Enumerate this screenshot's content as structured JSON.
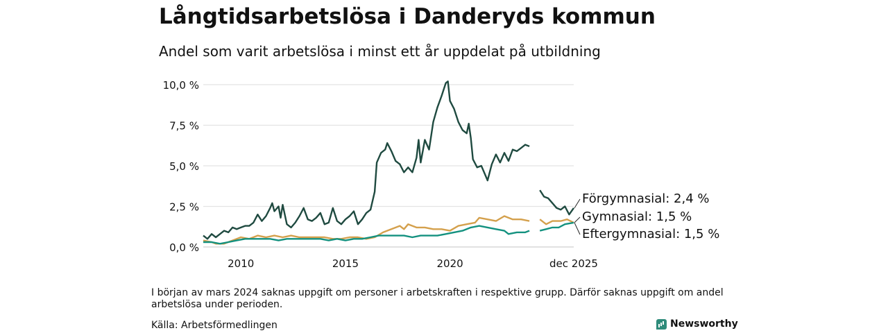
{
  "header": {
    "title": "Långtidsarbetslösa i Danderyds kommun",
    "subtitle": "Andel som varit arbetslösa i minst ett år uppdelat på utbildning"
  },
  "footer": {
    "note": "I början av mars 2024 saknas uppgift om personer i arbetskraften i respektive grupp. Därför saknas uppgift om andel arbetslösa under perioden.",
    "source": "Källa: Arbetsförmedlingen",
    "brand": "Newsworthy"
  },
  "chart_data": {
    "type": "line",
    "title": "Långtidsarbetslösa i Danderyds kommun",
    "subtitle": "Andel som varit arbetslösa i minst ett år uppdelat på utbildning",
    "xlabel": "",
    "ylabel": "",
    "x_range": [
      2008.2,
      2025.92
    ],
    "ylim": [
      0,
      10.5
    ],
    "y_ticks": [
      0,
      2.5,
      5,
      7.5,
      10
    ],
    "y_tick_labels": [
      "0,0 %",
      "2,5 %",
      "5,0 %",
      "7,5 %",
      "10,0 %"
    ],
    "x_ticks": [
      2010,
      2015,
      2020,
      2025.92
    ],
    "x_tick_labels": [
      "2010",
      "2015",
      "2020",
      "dec 2025"
    ],
    "grid": true,
    "gap": [
      2024.0,
      2024.3
    ],
    "series": [
      {
        "name": "Förgymnasial",
        "label": "Förgymnasial: 2,4 %",
        "color": "#1f4a40",
        "points": [
          [
            2008.2,
            0.7
          ],
          [
            2008.4,
            0.5
          ],
          [
            2008.6,
            0.8
          ],
          [
            2008.8,
            0.6
          ],
          [
            2009.0,
            0.8
          ],
          [
            2009.2,
            1.0
          ],
          [
            2009.4,
            0.9
          ],
          [
            2009.6,
            1.2
          ],
          [
            2009.8,
            1.1
          ],
          [
            2010.0,
            1.2
          ],
          [
            2010.2,
            1.3
          ],
          [
            2010.4,
            1.3
          ],
          [
            2010.6,
            1.5
          ],
          [
            2010.8,
            2.0
          ],
          [
            2011.0,
            1.6
          ],
          [
            2011.2,
            1.9
          ],
          [
            2011.4,
            2.4
          ],
          [
            2011.5,
            2.7
          ],
          [
            2011.6,
            2.2
          ],
          [
            2011.8,
            2.5
          ],
          [
            2011.9,
            1.8
          ],
          [
            2012.0,
            2.6
          ],
          [
            2012.2,
            1.4
          ],
          [
            2012.4,
            1.2
          ],
          [
            2012.6,
            1.5
          ],
          [
            2012.8,
            1.9
          ],
          [
            2013.0,
            2.4
          ],
          [
            2013.2,
            1.7
          ],
          [
            2013.4,
            1.6
          ],
          [
            2013.6,
            1.8
          ],
          [
            2013.8,
            2.1
          ],
          [
            2014.0,
            1.4
          ],
          [
            2014.2,
            1.5
          ],
          [
            2014.4,
            2.4
          ],
          [
            2014.6,
            1.6
          ],
          [
            2014.8,
            1.4
          ],
          [
            2015.0,
            1.7
          ],
          [
            2015.2,
            1.9
          ],
          [
            2015.4,
            2.2
          ],
          [
            2015.6,
            1.4
          ],
          [
            2015.8,
            1.7
          ],
          [
            2016.0,
            2.1
          ],
          [
            2016.2,
            2.3
          ],
          [
            2016.4,
            3.4
          ],
          [
            2016.5,
            5.2
          ],
          [
            2016.7,
            5.8
          ],
          [
            2016.9,
            6.0
          ],
          [
            2017.0,
            6.4
          ],
          [
            2017.2,
            5.9
          ],
          [
            2017.4,
            5.3
          ],
          [
            2017.6,
            5.1
          ],
          [
            2017.8,
            4.6
          ],
          [
            2018.0,
            4.9
          ],
          [
            2018.2,
            4.6
          ],
          [
            2018.4,
            5.5
          ],
          [
            2018.5,
            6.6
          ],
          [
            2018.6,
            5.2
          ],
          [
            2018.8,
            6.6
          ],
          [
            2019.0,
            6.0
          ],
          [
            2019.2,
            7.7
          ],
          [
            2019.4,
            8.6
          ],
          [
            2019.6,
            9.3
          ],
          [
            2019.8,
            10.1
          ],
          [
            2019.9,
            10.2
          ],
          [
            2020.0,
            9.0
          ],
          [
            2020.2,
            8.5
          ],
          [
            2020.4,
            7.7
          ],
          [
            2020.6,
            7.2
          ],
          [
            2020.8,
            7.0
          ],
          [
            2020.9,
            7.6
          ],
          [
            2021.0,
            6.7
          ],
          [
            2021.1,
            5.4
          ],
          [
            2021.3,
            4.9
          ],
          [
            2021.5,
            5.0
          ],
          [
            2021.7,
            4.4
          ],
          [
            2021.8,
            4.1
          ],
          [
            2022.0,
            5.1
          ],
          [
            2022.2,
            5.7
          ],
          [
            2022.4,
            5.2
          ],
          [
            2022.6,
            5.8
          ],
          [
            2022.8,
            5.3
          ],
          [
            2023.0,
            6.0
          ],
          [
            2023.2,
            5.9
          ],
          [
            2023.4,
            6.1
          ],
          [
            2023.6,
            6.3
          ],
          [
            2023.8,
            6.2
          ],
          [
            2024.3,
            3.5
          ],
          [
            2024.5,
            3.1
          ],
          [
            2024.7,
            3.0
          ],
          [
            2024.9,
            2.7
          ],
          [
            2025.1,
            2.4
          ],
          [
            2025.3,
            2.3
          ],
          [
            2025.5,
            2.5
          ],
          [
            2025.7,
            2.0
          ],
          [
            2025.92,
            2.4
          ]
        ]
      },
      {
        "name": "Gymnasial",
        "label": "Gymnasial: 1,5 %",
        "color": "#d4a04c",
        "points": [
          [
            2008.2,
            0.4
          ],
          [
            2008.6,
            0.3
          ],
          [
            2008.8,
            0.2
          ],
          [
            2009.2,
            0.2
          ],
          [
            2009.6,
            0.4
          ],
          [
            2010.0,
            0.6
          ],
          [
            2010.4,
            0.5
          ],
          [
            2010.8,
            0.7
          ],
          [
            2011.2,
            0.6
          ],
          [
            2011.6,
            0.7
          ],
          [
            2012.0,
            0.6
          ],
          [
            2012.4,
            0.7
          ],
          [
            2012.8,
            0.6
          ],
          [
            2013.2,
            0.6
          ],
          [
            2013.6,
            0.6
          ],
          [
            2014.0,
            0.6
          ],
          [
            2014.4,
            0.5
          ],
          [
            2014.8,
            0.5
          ],
          [
            2015.2,
            0.6
          ],
          [
            2015.6,
            0.6
          ],
          [
            2016.0,
            0.5
          ],
          [
            2016.4,
            0.6
          ],
          [
            2016.8,
            0.9
          ],
          [
            2017.2,
            1.1
          ],
          [
            2017.6,
            1.3
          ],
          [
            2017.8,
            1.1
          ],
          [
            2018.0,
            1.4
          ],
          [
            2018.4,
            1.2
          ],
          [
            2018.8,
            1.2
          ],
          [
            2019.2,
            1.1
          ],
          [
            2019.6,
            1.1
          ],
          [
            2020.0,
            1.0
          ],
          [
            2020.4,
            1.3
          ],
          [
            2020.8,
            1.4
          ],
          [
            2021.2,
            1.5
          ],
          [
            2021.4,
            1.8
          ],
          [
            2021.8,
            1.7
          ],
          [
            2022.2,
            1.6
          ],
          [
            2022.6,
            1.9
          ],
          [
            2023.0,
            1.7
          ],
          [
            2023.4,
            1.7
          ],
          [
            2023.8,
            1.6
          ],
          [
            2024.3,
            1.7
          ],
          [
            2024.6,
            1.4
          ],
          [
            2024.9,
            1.6
          ],
          [
            2025.3,
            1.6
          ],
          [
            2025.6,
            1.7
          ],
          [
            2025.92,
            1.5
          ]
        ]
      },
      {
        "name": "Eftergymnasial",
        "label": "Eftergymnasial: 1,5 %",
        "color": "#13917f",
        "points": [
          [
            2008.2,
            0.3
          ],
          [
            2008.6,
            0.3
          ],
          [
            2009.0,
            0.2
          ],
          [
            2009.4,
            0.3
          ],
          [
            2009.8,
            0.4
          ],
          [
            2010.2,
            0.5
          ],
          [
            2010.6,
            0.5
          ],
          [
            2011.0,
            0.5
          ],
          [
            2011.4,
            0.5
          ],
          [
            2011.8,
            0.4
          ],
          [
            2012.2,
            0.5
          ],
          [
            2012.6,
            0.5
          ],
          [
            2013.0,
            0.5
          ],
          [
            2013.4,
            0.5
          ],
          [
            2013.8,
            0.5
          ],
          [
            2014.2,
            0.4
          ],
          [
            2014.6,
            0.5
          ],
          [
            2015.0,
            0.4
          ],
          [
            2015.4,
            0.5
          ],
          [
            2015.8,
            0.5
          ],
          [
            2016.2,
            0.6
          ],
          [
            2016.6,
            0.7
          ],
          [
            2017.0,
            0.7
          ],
          [
            2017.4,
            0.7
          ],
          [
            2017.8,
            0.7
          ],
          [
            2018.2,
            0.6
          ],
          [
            2018.6,
            0.7
          ],
          [
            2019.0,
            0.7
          ],
          [
            2019.4,
            0.7
          ],
          [
            2019.8,
            0.8
          ],
          [
            2020.2,
            0.9
          ],
          [
            2020.6,
            1.0
          ],
          [
            2021.0,
            1.2
          ],
          [
            2021.4,
            1.3
          ],
          [
            2021.8,
            1.2
          ],
          [
            2022.2,
            1.1
          ],
          [
            2022.6,
            1.0
          ],
          [
            2022.8,
            0.8
          ],
          [
            2023.2,
            0.9
          ],
          [
            2023.6,
            0.9
          ],
          [
            2023.8,
            1.0
          ],
          [
            2024.3,
            1.0
          ],
          [
            2024.6,
            1.1
          ],
          [
            2024.9,
            1.2
          ],
          [
            2025.2,
            1.2
          ],
          [
            2025.5,
            1.4
          ],
          [
            2025.92,
            1.5
          ]
        ]
      }
    ]
  }
}
